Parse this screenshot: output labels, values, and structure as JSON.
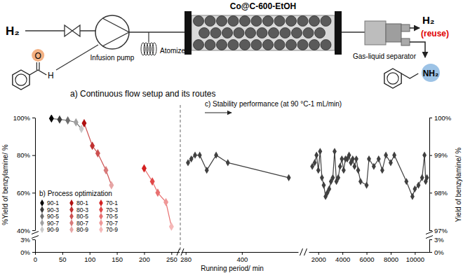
{
  "diagram": {
    "feed_gas": "H₂",
    "reactant_atoms": [
      "O",
      "H"
    ],
    "pump": "Infusion pump",
    "atomizer": "Atomizer",
    "reactor": "Co@C-600-EtOH",
    "separator": "Gas-liquid separator",
    "outlet_gas": "H₂",
    "outlet_note": "(reuse)",
    "product_group": "NH₂",
    "caption": "a) Continuous flow setup and its routes"
  },
  "chart_data": [
    {
      "type": "line",
      "title": "b) Process optimization",
      "x_label": "Running period/ min",
      "y_label": "%Yield of benzylamine/ %",
      "xlim": [
        0,
        265
      ],
      "xticks": [
        0,
        50,
        100,
        150,
        200,
        250
      ],
      "ylim": [
        0,
        100
      ],
      "ybreak": [
        3,
        40
      ],
      "yticks": [
        {
          "value": 0,
          "label": "0%"
        },
        {
          "value": 3,
          "label": "3%"
        },
        {
          "value": 40,
          "label": "40%"
        },
        {
          "value": 60,
          "label": "60%"
        },
        {
          "value": 80,
          "label": "80%"
        },
        {
          "value": 100,
          "label": "100%"
        }
      ],
      "marker": "diamond",
      "legend": "lower left",
      "series": [
        {
          "name": "90-1",
          "color": "#000000",
          "x": [
            30
          ],
          "values": [
            99.5
          ]
        },
        {
          "name": "90-3",
          "color": "#3a3a3a",
          "x": [
            45
          ],
          "values": [
            99
          ]
        },
        {
          "name": "90-5",
          "color": "#6e6e6e",
          "x": [
            60
          ],
          "values": [
            98.5
          ]
        },
        {
          "name": "90-7",
          "color": "#a0a0a0",
          "x": [
            75
          ],
          "values": [
            97.5
          ]
        },
        {
          "name": "90-9",
          "color": "#c8c8c8",
          "x": [
            85
          ],
          "values": [
            94
          ]
        },
        {
          "name": "80-1",
          "color": "#b01010",
          "x": [
            90
          ],
          "values": [
            97
          ]
        },
        {
          "name": "80-3",
          "color": "#c03030",
          "x": [
            105
          ],
          "values": [
            85
          ]
        },
        {
          "name": "80-5",
          "color": "#cc5050",
          "x": [
            115
          ],
          "values": [
            81
          ]
        },
        {
          "name": "80-7",
          "color": "#d87a7a",
          "x": [
            130
          ],
          "values": [
            72
          ]
        },
        {
          "name": "80-9",
          "color": "#e6a5a5",
          "x": [
            140
          ],
          "values": [
            64
          ]
        },
        {
          "name": "70-1",
          "color": "#d42020",
          "x": [
            200
          ],
          "values": [
            73
          ]
        },
        {
          "name": "70-3",
          "color": "#e04848",
          "x": [
            215
          ],
          "values": [
            66
          ]
        },
        {
          "name": "70-5",
          "color": "#e87070",
          "x": [
            225
          ],
          "values": [
            60
          ]
        },
        {
          "name": "70-7",
          "color": "#ef9898",
          "x": [
            240
          ],
          "values": [
            55
          ]
        },
        {
          "name": "70-9",
          "color": "#f5b8b8",
          "x": [
            250
          ],
          "values": [
            42
          ]
        }
      ]
    },
    {
      "type": "line",
      "title": "c) Stability performance (at 90 °C-1 mL/min)",
      "y_label": "Yield of benzylamine/ %",
      "xlim": [
        270,
        11200
      ],
      "xbreak": [
        520,
        1200
      ],
      "xticks": [
        280,
        400,
        2000,
        4000,
        6000,
        8000,
        10000
      ],
      "ylim": [
        0,
        100
      ],
      "ybreak": [
        3,
        97
      ],
      "yticks": [
        {
          "value": 0,
          "label": "0%"
        },
        {
          "value": 3,
          "label": "3%"
        },
        {
          "value": 97,
          "label": "97%"
        },
        {
          "value": 98,
          "label": "98%"
        },
        {
          "value": 99,
          "label": "99%"
        },
        {
          "value": 100,
          "label": "100%"
        }
      ],
      "marker": "diamond",
      "series": [
        {
          "color": "#404040",
          "x": [
            285,
            292,
            300,
            310,
            325,
            345,
            370,
            500,
            1500,
            1700,
            1850,
            2000,
            2150,
            2300,
            2450,
            2600,
            2750,
            2900,
            3050,
            3200,
            3350,
            3500,
            3650,
            3800,
            3950,
            4100,
            4250,
            4400,
            4550,
            4700,
            4850,
            5000,
            5150,
            5300,
            5500,
            6000,
            6200,
            6600,
            7000,
            7300,
            7600,
            8000,
            8300,
            9300,
            9800,
            10000,
            10300,
            10600,
            10800,
            10900,
            11000
          ],
          "values": [
            98.8,
            98.9,
            99.0,
            99.0,
            98.6,
            99.0,
            98.8,
            98.4,
            98.7,
            98.8,
            99.0,
            98.6,
            99.1,
            98.4,
            98.2,
            97.9,
            98.0,
            98.1,
            98.3,
            98.4,
            99.1,
            98.3,
            98.4,
            98.7,
            98.9,
            98.6,
            98.9,
            98.9,
            99.0,
            98.8,
            98.9,
            98.7,
            98.9,
            98.6,
            98.3,
            98.2,
            98.9,
            98.7,
            98.9,
            98.6,
            99.0,
            98.8,
            99.0,
            98.3,
            97.9,
            98.1,
            98.2,
            98.4,
            99.0,
            98.3,
            98.4
          ]
        }
      ]
    }
  ]
}
